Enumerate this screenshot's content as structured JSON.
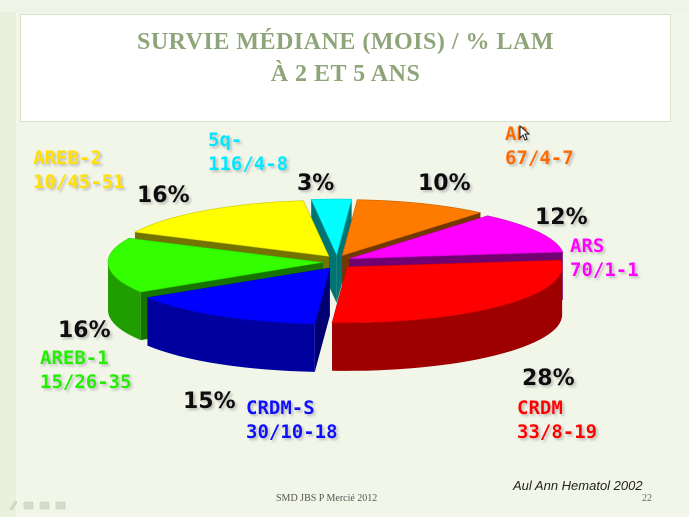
{
  "title_line1": "SURVIE MÉDIANE (MOIS) / % LAM",
  "title_line2": "À 2 ET 5 ANS",
  "source": "Aul Ann Hematol 2002",
  "footer": "SMD JBS P Mercié 2012",
  "page_number": "22",
  "cursor_icon": "mouse-pointer-icon",
  "chart_data": {
    "type": "pie",
    "title": "SURVIE MÉDIANE (MOIS) / % LAM À 2 ET 5 ANS",
    "slices": [
      {
        "name": "AR",
        "detail": "67/4-7",
        "percent": 10,
        "percent_label": "10%",
        "color": "#ff7b00"
      },
      {
        "name": "ARS",
        "detail": "70/1-1",
        "percent": 12,
        "percent_label": "12%",
        "color": "#ff00ff"
      },
      {
        "name": "CRDM",
        "detail": "33/8-19",
        "percent": 28,
        "percent_label": "28%",
        "color": "#ff0000"
      },
      {
        "name": "CRDM-S",
        "detail": "30/10-18",
        "percent": 15,
        "percent_label": "15%",
        "color": "#0000ff"
      },
      {
        "name": "AREB-1",
        "detail": "15/26-35",
        "percent": 16,
        "percent_label": "16%",
        "color": "#33ff00"
      },
      {
        "name": "AREB-2",
        "detail": "10/45-51",
        "percent": 16,
        "percent_label": "16%",
        "color": "#ffff00"
      },
      {
        "name": "5q-",
        "detail": "116/4-8",
        "percent": 3,
        "percent_label": "3%",
        "color": "#00ffff"
      }
    ],
    "label_colors": {
      "AR": "#ff6a00",
      "ARS": "#ff00ff",
      "CRDM": "#ff0000",
      "CRDM-S": "#1010ff",
      "AREB-1": "#22ee00",
      "AREB-2": "#ffe000",
      "5q-": "#00e8ff"
    }
  }
}
